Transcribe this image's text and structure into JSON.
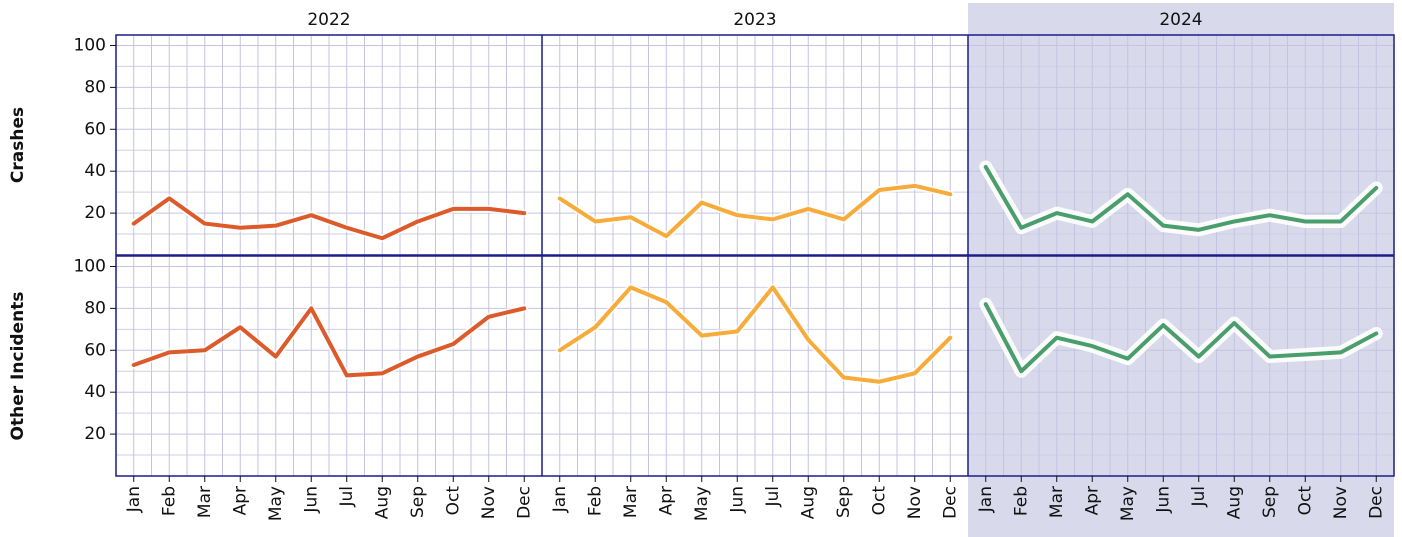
{
  "chart_data": {
    "type": "line",
    "columns": [
      {
        "label": "2022",
        "color": "#dd5a2b",
        "highlight": false
      },
      {
        "label": "2023",
        "color": "#f7ab3a",
        "highlight": false
      },
      {
        "label": "2024",
        "color": "#4a9e6c",
        "highlight": true
      }
    ],
    "categories": [
      "Jan",
      "Feb",
      "Mar",
      "Apr",
      "May",
      "Jun",
      "Jul",
      "Aug",
      "Sep",
      "Oct",
      "Nov",
      "Dec"
    ],
    "ylim": [
      0,
      105
    ],
    "yticks": [
      20,
      40,
      60,
      80,
      100
    ],
    "y_minor_ticks": [
      10,
      30,
      50,
      70,
      90
    ],
    "grid": true,
    "rows": [
      {
        "label": "Crashes",
        "panels": [
          {
            "values": [
              15,
              27,
              15,
              13,
              14,
              19,
              13,
              8,
              16,
              22,
              22,
              20
            ]
          },
          {
            "values": [
              27,
              16,
              18,
              9,
              25,
              19,
              17,
              22,
              17,
              31,
              33,
              29
            ]
          },
          {
            "values": [
              42,
              13,
              20,
              16,
              29,
              14,
              12,
              16,
              19,
              16,
              16,
              32
            ]
          }
        ]
      },
      {
        "label": "Other Incidents",
        "panels": [
          {
            "values": [
              53,
              59,
              60,
              71,
              57,
              80,
              48,
              49,
              57,
              63,
              76,
              80
            ]
          },
          {
            "values": [
              60,
              71,
              90,
              83,
              67,
              69,
              90,
              65,
              47,
              45,
              49,
              66
            ]
          },
          {
            "values": [
              82,
              50,
              66,
              62,
              56,
              72,
              57,
              73,
              57,
              58,
              59,
              68
            ]
          }
        ]
      }
    ]
  }
}
